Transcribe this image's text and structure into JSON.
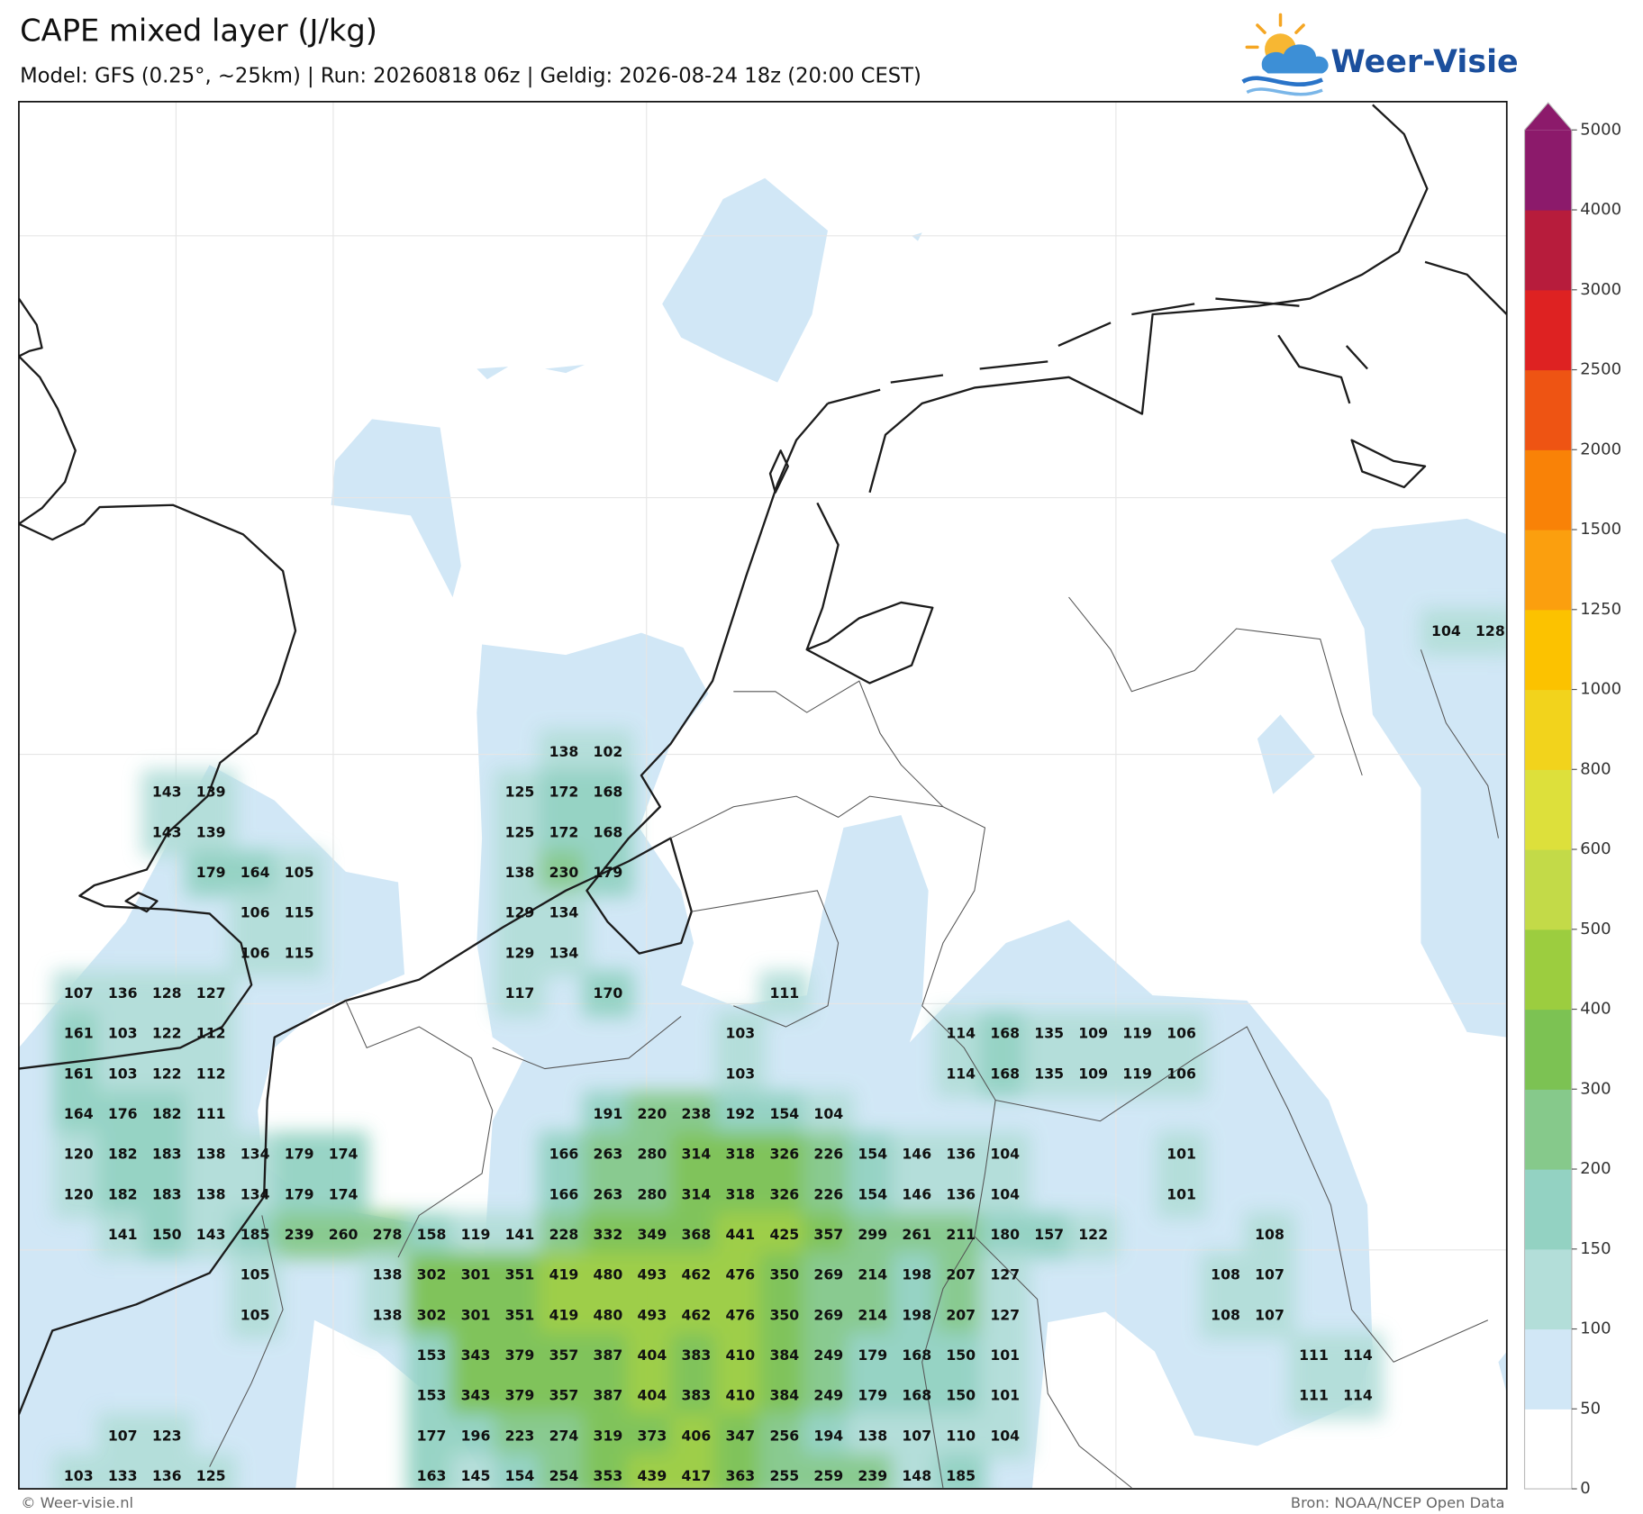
{
  "header": {
    "title": "CAPE mixed layer (J/kg)",
    "subtitle": "Model: GFS (0.25°, ~25km)  |  Run: 20260818 06z  |  Geldig: 2026-08-24 18z (20:00 CEST)"
  },
  "logo": {
    "text": "Weer-Visie"
  },
  "footer": {
    "copyright": "© Weer-visie.nl",
    "source": "Bron: NOAA/NCEP Open Data"
  },
  "colorbar": {
    "levels": [
      0,
      50,
      100,
      150,
      200,
      300,
      400,
      500,
      600,
      800,
      1000,
      1250,
      1500,
      2000,
      2500,
      3000,
      4000,
      5000
    ],
    "colors": [
      "#ffffff",
      "#d1e7f6",
      "#b3ded9",
      "#93d2c2",
      "#86c98b",
      "#7cc253",
      "#9ccd3f",
      "#c3da48",
      "#dde03b",
      "#f2d31c",
      "#fcc200",
      "#fb9f0e",
      "#f98207",
      "#ee5413",
      "#de2222",
      "#b71c3c",
      "#8c1a6b"
    ],
    "extend": "max"
  },
  "grid": {
    "rows": [
      [
        null,
        null,
        null,
        null,
        null,
        null,
        null,
        null,
        null,
        null,
        null,
        null,
        null,
        null,
        null,
        null,
        null,
        null,
        null,
        null,
        null,
        null,
        null,
        null,
        null,
        null,
        null,
        null,
        null,
        null,
        null,
        104,
        128
      ],
      [
        null,
        null,
        null,
        null,
        null,
        null,
        null,
        null,
        null,
        null,
        null,
        null,
        null,
        null,
        null,
        null,
        null,
        null,
        null,
        null,
        null,
        null,
        null,
        null,
        null,
        null,
        null,
        null,
        null,
        null,
        null,
        null,
        null
      ],
      [
        null,
        null,
        null,
        null,
        null,
        null,
        null,
        null,
        null,
        null,
        null,
        null,
        null,
        null,
        null,
        null,
        null,
        null,
        null,
        null,
        null,
        null,
        null,
        null,
        null,
        null,
        null,
        null,
        null,
        null,
        null,
        null,
        null
      ],
      [
        null,
        null,
        null,
        null,
        null,
        null,
        null,
        null,
        null,
        null,
        null,
        138,
        102,
        null,
        null,
        null,
        null,
        null,
        null,
        null,
        null,
        null,
        null,
        null,
        null,
        null,
        null,
        null,
        null,
        null,
        null,
        null,
        null
      ],
      [
        null,
        null,
        143,
        139,
        null,
        null,
        null,
        null,
        null,
        null,
        125,
        172,
        168,
        null,
        null,
        null,
        null,
        null,
        null,
        null,
        null,
        null,
        null,
        null,
        null,
        null,
        null,
        null,
        null,
        null,
        null,
        null,
        null
      ],
      [
        null,
        null,
        143,
        139,
        null,
        null,
        null,
        null,
        null,
        null,
        125,
        172,
        168,
        null,
        null,
        null,
        null,
        null,
        null,
        null,
        null,
        null,
        null,
        null,
        null,
        null,
        null,
        null,
        null,
        null,
        null,
        null,
        null
      ],
      [
        null,
        null,
        null,
        179,
        164,
        105,
        null,
        null,
        null,
        null,
        138,
        230,
        179,
        null,
        null,
        null,
        null,
        null,
        null,
        null,
        null,
        null,
        null,
        null,
        null,
        null,
        null,
        null,
        null,
        null,
        null,
        null,
        null
      ],
      [
        null,
        null,
        null,
        null,
        106,
        115,
        null,
        null,
        null,
        null,
        129,
        134,
        null,
        null,
        null,
        null,
        null,
        null,
        null,
        null,
        null,
        null,
        null,
        null,
        null,
        null,
        null,
        null,
        null,
        null,
        null,
        null,
        null
      ],
      [
        null,
        null,
        null,
        null,
        106,
        115,
        null,
        null,
        null,
        null,
        129,
        134,
        null,
        null,
        null,
        null,
        null,
        null,
        null,
        null,
        null,
        null,
        null,
        null,
        null,
        null,
        null,
        null,
        null,
        null,
        null,
        null,
        null
      ],
      [
        107,
        136,
        128,
        127,
        null,
        null,
        null,
        null,
        null,
        null,
        117,
        null,
        170,
        null,
        null,
        null,
        111,
        null,
        null,
        null,
        null,
        null,
        null,
        null,
        null,
        null,
        null,
        null,
        null,
        null,
        null,
        null,
        null
      ],
      [
        161,
        103,
        122,
        112,
        null,
        null,
        null,
        null,
        null,
        null,
        null,
        null,
        null,
        null,
        null,
        103,
        null,
        null,
        null,
        null,
        114,
        168,
        135,
        109,
        119,
        106,
        null,
        null,
        null,
        null,
        null,
        null,
        null
      ],
      [
        161,
        103,
        122,
        112,
        null,
        null,
        null,
        null,
        null,
        null,
        null,
        null,
        null,
        null,
        null,
        103,
        null,
        null,
        null,
        null,
        114,
        168,
        135,
        109,
        119,
        106,
        null,
        null,
        null,
        null,
        null,
        null,
        null
      ],
      [
        164,
        176,
        182,
        111,
        null,
        null,
        null,
        null,
        null,
        null,
        null,
        null,
        191,
        220,
        238,
        192,
        154,
        104,
        null,
        null,
        null,
        null,
        null,
        null,
        null,
        null,
        null,
        null,
        null,
        null,
        null,
        null,
        null
      ],
      [
        120,
        182,
        183,
        138,
        134,
        179,
        174,
        null,
        null,
        null,
        null,
        166,
        263,
        280,
        314,
        318,
        326,
        226,
        154,
        146,
        136,
        104,
        null,
        null,
        null,
        101,
        null,
        null,
        null,
        null,
        null,
        null,
        null
      ],
      [
        120,
        182,
        183,
        138,
        134,
        179,
        174,
        null,
        null,
        null,
        null,
        166,
        263,
        280,
        314,
        318,
        326,
        226,
        154,
        146,
        136,
        104,
        null,
        null,
        null,
        101,
        null,
        null,
        null,
        null,
        null,
        null,
        null
      ],
      [
        null,
        141,
        150,
        143,
        185,
        239,
        260,
        278,
        158,
        119,
        141,
        228,
        332,
        349,
        368,
        441,
        425,
        357,
        299,
        261,
        211,
        180,
        157,
        122,
        null,
        null,
        null,
        108,
        null,
        null,
        null,
        null,
        null
      ],
      [
        null,
        null,
        null,
        null,
        105,
        null,
        null,
        138,
        302,
        301,
        351,
        419,
        480,
        493,
        462,
        476,
        350,
        269,
        214,
        198,
        207,
        127,
        null,
        null,
        null,
        null,
        108,
        107,
        null,
        null,
        null,
        null,
        null
      ],
      [
        null,
        null,
        null,
        null,
        105,
        null,
        null,
        138,
        302,
        301,
        351,
        419,
        480,
        493,
        462,
        476,
        350,
        269,
        214,
        198,
        207,
        127,
        null,
        null,
        null,
        null,
        108,
        107,
        null,
        null,
        null,
        null,
        null
      ],
      [
        null,
        null,
        null,
        null,
        null,
        null,
        null,
        null,
        153,
        343,
        379,
        357,
        387,
        404,
        383,
        410,
        384,
        249,
        179,
        168,
        150,
        101,
        null,
        null,
        null,
        null,
        null,
        null,
        111,
        114,
        null,
        null,
        null
      ],
      [
        null,
        null,
        null,
        null,
        null,
        null,
        null,
        null,
        153,
        343,
        379,
        357,
        387,
        404,
        383,
        410,
        384,
        249,
        179,
        168,
        150,
        101,
        null,
        null,
        null,
        null,
        null,
        null,
        111,
        114,
        null,
        null,
        null
      ],
      [
        null,
        107,
        123,
        null,
        null,
        null,
        null,
        null,
        177,
        196,
        223,
        274,
        319,
        373,
        406,
        347,
        256,
        194,
        138,
        107,
        110,
        104,
        null,
        null,
        null,
        null,
        null,
        null,
        null,
        null,
        null,
        null,
        null
      ],
      [
        103,
        133,
        136,
        125,
        null,
        null,
        null,
        null,
        163,
        145,
        154,
        254,
        353,
        439,
        417,
        363,
        255,
        259,
        239,
        148,
        185,
        null,
        null,
        null,
        null,
        null,
        null,
        null,
        null,
        null,
        null,
        null,
        null
      ]
    ]
  }
}
